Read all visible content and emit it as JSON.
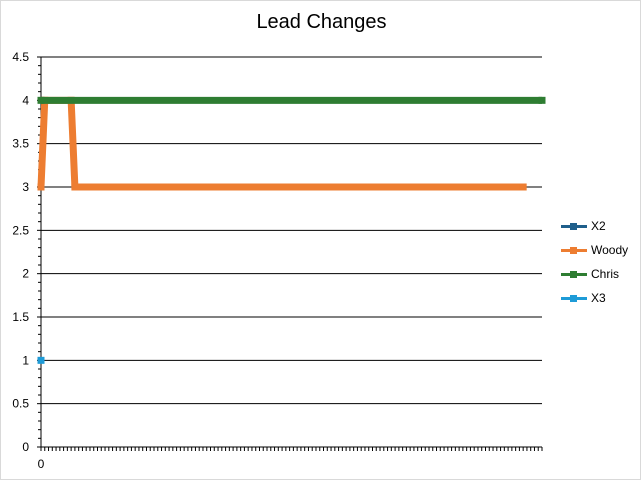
{
  "chart_data": {
    "type": "line",
    "title": "Lead Changes",
    "xlabel": "",
    "ylabel": "",
    "ylim": [
      0,
      4.5
    ],
    "y_ticks": [
      "0",
      "0.5",
      "1",
      "1.5",
      "2",
      "2.5",
      "3",
      "3.5",
      "4",
      "4.5"
    ],
    "x_tick_labels": [
      "0"
    ],
    "grid": true,
    "legend_position": "right",
    "series": [
      {
        "name": "X2",
        "color": "#1f5f8b",
        "points": []
      },
      {
        "name": "Woody",
        "color": "#ed7d31",
        "points": [
          [
            0,
            3
          ],
          [
            1,
            4
          ],
          [
            8,
            4
          ],
          [
            9,
            3
          ],
          [
            128,
            3
          ]
        ]
      },
      {
        "name": "Chris",
        "color": "#2e7d32",
        "points": [
          [
            0,
            4
          ],
          [
            133,
            4
          ]
        ]
      },
      {
        "name": "X3",
        "color": "#1e9bd7",
        "points": [
          [
            0,
            1
          ]
        ]
      }
    ]
  }
}
